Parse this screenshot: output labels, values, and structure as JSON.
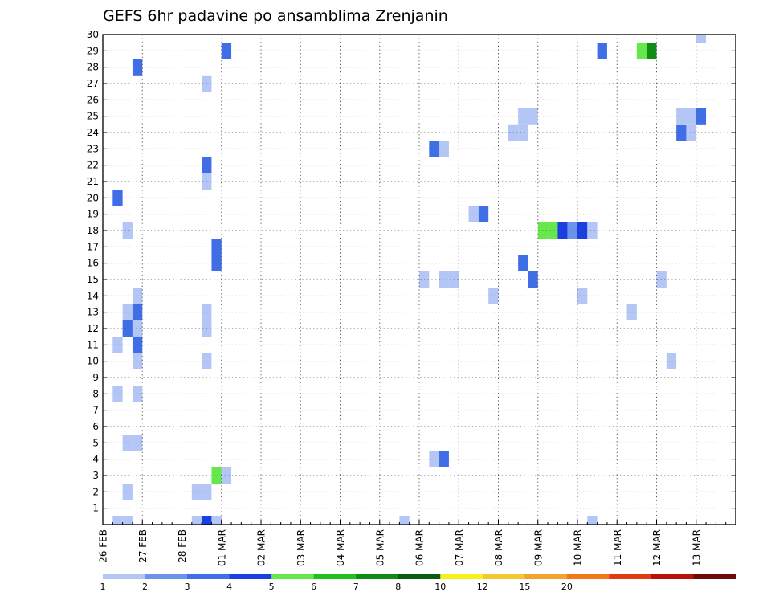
{
  "chart_data": {
    "type": "heatmap",
    "title": "GEFS 6hr padavine po ansamblima Zrenjanin",
    "xlabel": "",
    "ylabel": "",
    "x_unit": "6-hour step from 26 FEB 00Z",
    "x_range": [
      0,
      64
    ],
    "y_range": [
      0,
      30
    ],
    "y_ticks": [
      1,
      2,
      3,
      4,
      5,
      6,
      7,
      8,
      9,
      10,
      11,
      12,
      13,
      14,
      15,
      16,
      17,
      18,
      19,
      20,
      21,
      22,
      23,
      24,
      25,
      26,
      27,
      28,
      29,
      30
    ],
    "x_tick_labels": [
      {
        "label": "26 FEB",
        "step": 0
      },
      {
        "label": "27 FEB",
        "step": 4
      },
      {
        "label": "28 FEB",
        "step": 8
      },
      {
        "label": "01 MAR",
        "step": 12
      },
      {
        "label": "02 MAR",
        "step": 16
      },
      {
        "label": "03 MAR",
        "step": 20
      },
      {
        "label": "04 MAR",
        "step": 24
      },
      {
        "label": "05 MAR",
        "step": 28
      },
      {
        "label": "06 MAR",
        "step": 32
      },
      {
        "label": "07 MAR",
        "step": 36
      },
      {
        "label": "08 MAR",
        "step": 40
      },
      {
        "label": "09 MAR",
        "step": 44
      },
      {
        "label": "10 MAR",
        "step": 48
      },
      {
        "label": "11 MAR",
        "step": 52
      },
      {
        "label": "12 MAR",
        "step": 56
      },
      {
        "label": "13 MAR",
        "step": 60
      }
    ],
    "grid": true,
    "colorbar": {
      "labels": [
        "1",
        "2",
        "3",
        "4",
        "5",
        "6",
        "7",
        "8",
        "10",
        "12",
        "15",
        "20"
      ],
      "colors": [
        "#b4c6f5",
        "#6a93ec",
        "#3f6ee6",
        "#1a3fe0",
        "#66e84c",
        "#22c11e",
        "#0f8c14",
        "#0a5a10",
        "#f4f21a",
        "#f6c830",
        "#f5a233",
        "#f07a18",
        "#e23d12",
        "#b8120c",
        "#6e0a08"
      ]
    },
    "cells": [
      {
        "t": 1,
        "m": 0,
        "c": 1
      },
      {
        "t": 2,
        "m": 0,
        "c": 1
      },
      {
        "t": 9,
        "m": 0,
        "c": 1
      },
      {
        "t": 10,
        "m": 0,
        "c": 4
      },
      {
        "t": 11,
        "m": 0,
        "c": 1
      },
      {
        "t": 30,
        "m": 0,
        "c": 1
      },
      {
        "t": 49,
        "m": 0,
        "c": 1
      },
      {
        "t": 2,
        "m": 2,
        "c": 1
      },
      {
        "t": 9,
        "m": 2,
        "c": 1
      },
      {
        "t": 10,
        "m": 2,
        "c": 1
      },
      {
        "t": 11,
        "m": 3,
        "c": 5
      },
      {
        "t": 12,
        "m": 3,
        "c": 1
      },
      {
        "t": 33,
        "m": 4,
        "c": 1
      },
      {
        "t": 34,
        "m": 4,
        "c": 3
      },
      {
        "t": 2,
        "m": 5,
        "c": 1
      },
      {
        "t": 3,
        "m": 5,
        "c": 1
      },
      {
        "t": 1,
        "m": 8,
        "c": 1
      },
      {
        "t": 3,
        "m": 8,
        "c": 1
      },
      {
        "t": 3,
        "m": 10,
        "c": 1
      },
      {
        "t": 10,
        "m": 10,
        "c": 1
      },
      {
        "t": 57,
        "m": 10,
        "c": 1
      },
      {
        "t": 1,
        "m": 11,
        "c": 1
      },
      {
        "t": 3,
        "m": 11,
        "c": 3
      },
      {
        "t": 2,
        "m": 12,
        "c": 3
      },
      {
        "t": 3,
        "m": 12,
        "c": 1
      },
      {
        "t": 10,
        "m": 12,
        "c": 1
      },
      {
        "t": 2,
        "m": 13,
        "c": 1
      },
      {
        "t": 3,
        "m": 13,
        "c": 3
      },
      {
        "t": 10,
        "m": 13,
        "c": 1
      },
      {
        "t": 53,
        "m": 13,
        "c": 1
      },
      {
        "t": 3,
        "m": 14,
        "c": 1
      },
      {
        "t": 39,
        "m": 14,
        "c": 1
      },
      {
        "t": 48,
        "m": 14,
        "c": 1
      },
      {
        "t": 32,
        "m": 15,
        "c": 1
      },
      {
        "t": 34,
        "m": 15,
        "c": 1
      },
      {
        "t": 35,
        "m": 15,
        "c": 1
      },
      {
        "t": 43,
        "m": 15,
        "c": 3
      },
      {
        "t": 56,
        "m": 15,
        "c": 1
      },
      {
        "t": 11,
        "m": 16,
        "c": 3
      },
      {
        "t": 42,
        "m": 16,
        "c": 3
      },
      {
        "t": 11,
        "m": 17,
        "c": 3
      },
      {
        "t": 2,
        "m": 18,
        "c": 1
      },
      {
        "t": 37,
        "m": 19,
        "c": 1
      },
      {
        "t": 38,
        "m": 19,
        "c": 3
      },
      {
        "t": 44,
        "m": 18,
        "c": 5
      },
      {
        "t": 45,
        "m": 18,
        "c": 5
      },
      {
        "t": 46,
        "m": 18,
        "c": 4
      },
      {
        "t": 47,
        "m": 18,
        "c": 2
      },
      {
        "t": 48,
        "m": 18,
        "c": 4
      },
      {
        "t": 49,
        "m": 18,
        "c": 1
      },
      {
        "t": 1,
        "m": 20,
        "c": 3
      },
      {
        "t": 10,
        "m": 21,
        "c": 1
      },
      {
        "t": 10,
        "m": 22,
        "c": 3
      },
      {
        "t": 33,
        "m": 23,
        "c": 3
      },
      {
        "t": 34,
        "m": 23,
        "c": 1
      },
      {
        "t": 41,
        "m": 24,
        "c": 1
      },
      {
        "t": 42,
        "m": 24,
        "c": 1
      },
      {
        "t": 58,
        "m": 24,
        "c": 3
      },
      {
        "t": 59,
        "m": 24,
        "c": 1
      },
      {
        "t": 42,
        "m": 25,
        "c": 1
      },
      {
        "t": 43,
        "m": 25,
        "c": 1
      },
      {
        "t": 58,
        "m": 25,
        "c": 1
      },
      {
        "t": 59,
        "m": 25,
        "c": 1
      },
      {
        "t": 60,
        "m": 25,
        "c": 3
      },
      {
        "t": 10,
        "m": 27,
        "c": 1
      },
      {
        "t": 3,
        "m": 28,
        "c": 3
      },
      {
        "t": 12,
        "m": 29,
        "c": 3
      },
      {
        "t": 50,
        "m": 29,
        "c": 3
      },
      {
        "t": 54,
        "m": 29,
        "c": 5
      },
      {
        "t": 55,
        "m": 29,
        "c": 7
      },
      {
        "t": 60,
        "m": 30,
        "c": 1
      }
    ]
  }
}
